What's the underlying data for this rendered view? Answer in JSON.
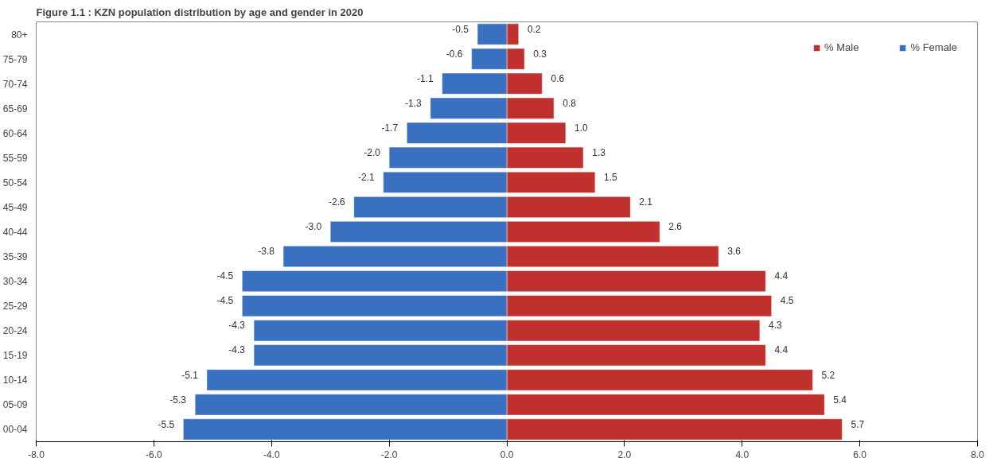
{
  "chart_data": {
    "type": "bar",
    "orientation": "horizontal",
    "title": "Figure 1.1 : KZN population distribution by age and gender in 2020",
    "categories": [
      "80+",
      "75-79",
      "70-74",
      "65-69",
      "60-64",
      "55-59",
      "50-54",
      "45-49",
      "40-44",
      "35-39",
      "30-34",
      "25-29",
      "20-24",
      "15-19",
      "10-14",
      "05-09",
      "00-04"
    ],
    "series": [
      {
        "name": "% Male",
        "color": "#c0302c",
        "values": [
          0.2,
          0.3,
          0.6,
          0.8,
          1.0,
          1.3,
          1.5,
          2.1,
          2.6,
          3.6,
          4.4,
          4.5,
          4.3,
          4.4,
          5.2,
          5.4,
          5.7
        ],
        "value_labels": [
          "0.2",
          "0.3",
          "0.6",
          "0.8",
          "1.0",
          "1.3",
          "1.5",
          "2.1",
          "2.6",
          "3.6",
          "4.4",
          "4.5",
          "4.3",
          "4.4",
          "5.2",
          "5.4",
          "5.7"
        ]
      },
      {
        "name": "% Female",
        "color": "#3a70c0",
        "values": [
          -0.5,
          -0.6,
          -1.1,
          -1.3,
          -1.7,
          -2.0,
          -2.1,
          -2.6,
          -3.0,
          -3.8,
          -4.5,
          -4.5,
          -4.3,
          -4.3,
          -5.1,
          -5.3,
          -5.5
        ],
        "value_labels": [
          "-0.5",
          "-0.6",
          "-1.1",
          "-1.3",
          "-1.7",
          "-2.0",
          "-2.1",
          "-2.6",
          "-3.0",
          "-3.8",
          "-4.5",
          "-4.5",
          "-4.3",
          "-4.3",
          "-5.1",
          "-5.3",
          "-5.5"
        ]
      }
    ],
    "xlim": [
      -8,
      8
    ],
    "xticks": [
      {
        "value": -8,
        "label": "-8.0"
      },
      {
        "value": -6,
        "label": "-6.0"
      },
      {
        "value": -4,
        "label": "-4.0"
      },
      {
        "value": -2,
        "label": "-2.0"
      },
      {
        "value": 0,
        "label": "0.0"
      },
      {
        "value": 2,
        "label": "2.0"
      },
      {
        "value": 4,
        "label": "4.0"
      },
      {
        "value": 6,
        "label": "6.0"
      },
      {
        "value": 8,
        "label": "8.0"
      }
    ],
    "grid": false,
    "legend": "top right",
    "stacked": true
  }
}
